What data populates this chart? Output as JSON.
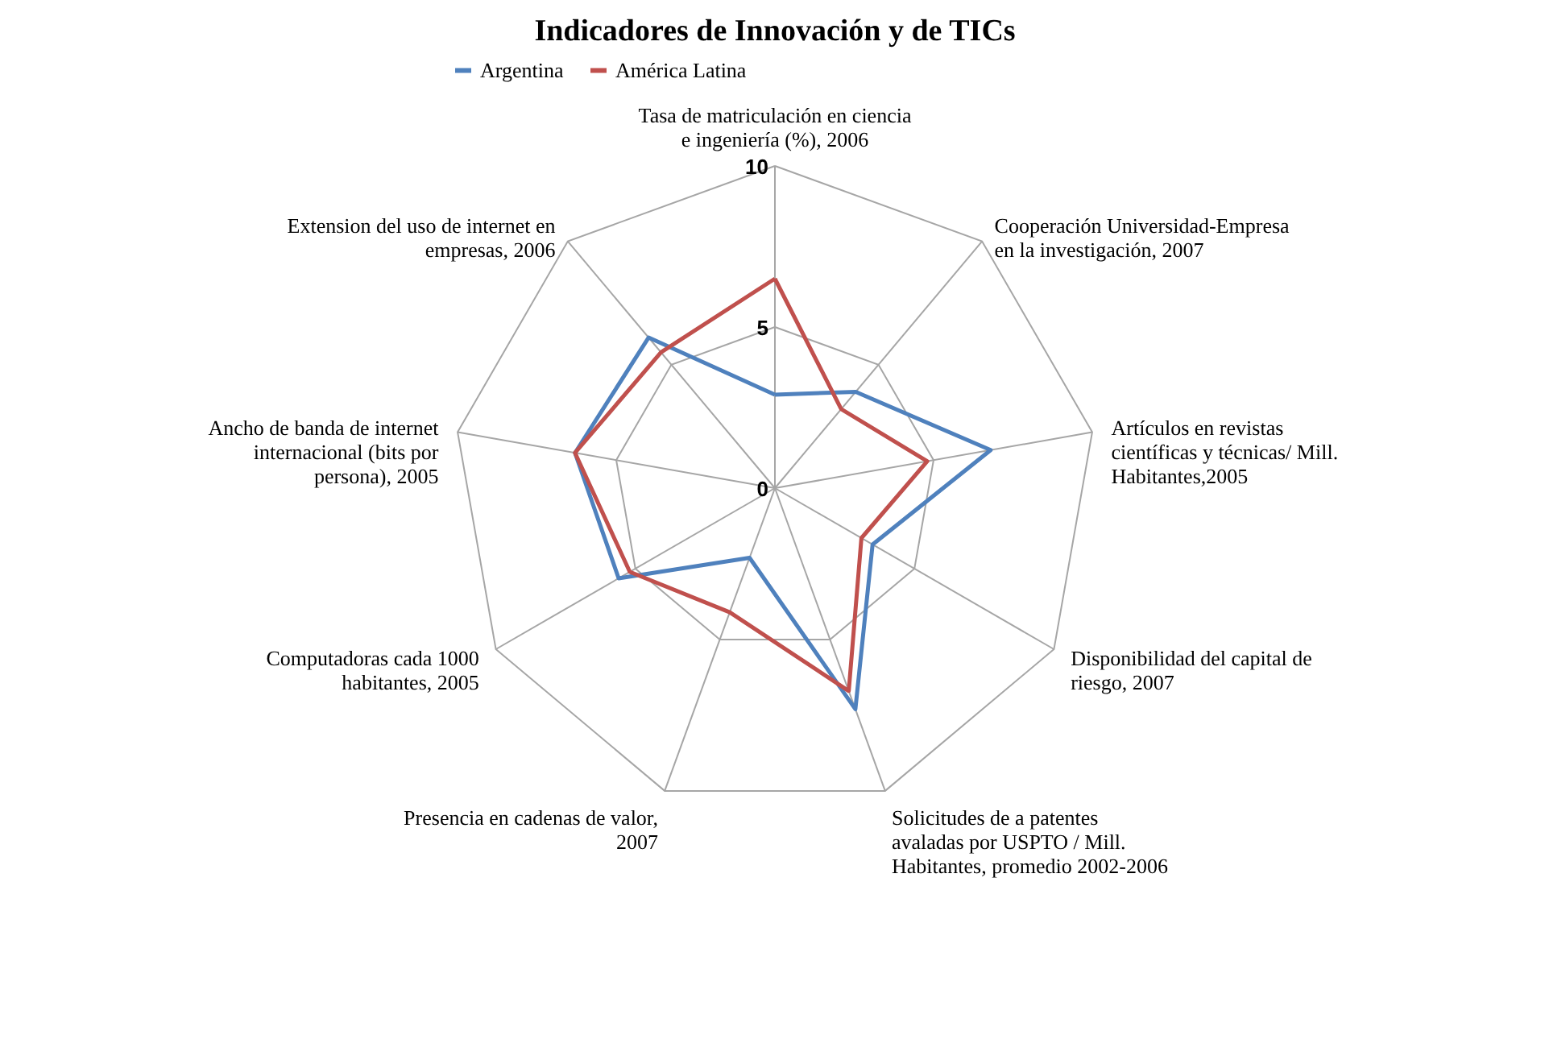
{
  "chart_data": {
    "type": "radar",
    "title": "Indicadores de Innovación y de TICs",
    "categories": [
      "Tasa de matriculación en ciencia e ingeniería (%), 2006",
      "Cooperación Universidad-Empresa en la investigación, 2007",
      "Artículos en revistas científicas y técnicas/ Mill. Habitantes,2005",
      "Disponibilidad del capital de riesgo, 2007",
      "Solicitudes de a patentes avaladas por USPTO / Mill. Habitantes, promedio 2002-2006",
      "Presencia en cadenas de valor, 2007",
      "Computadoras cada 1000 habitantes, 2005",
      "Ancho de banda de internet internacional (bits por persona), 2005",
      "Extension del uso de internet en empresas, 2006"
    ],
    "series": [
      {
        "name": "Argentina",
        "color": "#4f81bd",
        "values": [
          2.9,
          3.9,
          6.8,
          3.5,
          7.3,
          2.3,
          5.6,
          6.3,
          6.1
        ]
      },
      {
        "name": "América Latina",
        "color": "#c0504d",
        "values": [
          6.5,
          3.2,
          4.8,
          3.1,
          6.7,
          4.1,
          5.2,
          6.3,
          5.5
        ]
      }
    ],
    "ylim": [
      0,
      10
    ],
    "yticks": [
      0,
      5,
      10
    ],
    "grid": true,
    "legend": "top",
    "marker": "none",
    "line_style": "solid"
  }
}
